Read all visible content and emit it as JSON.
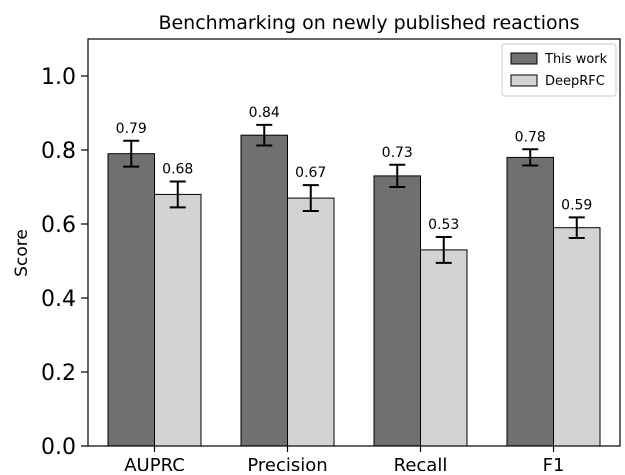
{
  "chart_data": {
    "type": "bar",
    "title": "Benchmarking on newly published reactions",
    "xlabel": "",
    "ylabel": "Score",
    "ylim": [
      0.0,
      1.1
    ],
    "yticks": [
      "0.0",
      "0.2",
      "0.4",
      "0.6",
      "0.8",
      "1.0"
    ],
    "grid": false,
    "legend_position": "top-right",
    "categories": [
      "AUPRC",
      "Precision",
      "Recall",
      "F1"
    ],
    "series": [
      {
        "name": "This work",
        "color": "#707070",
        "values": [
          0.79,
          0.84,
          0.73,
          0.78
        ],
        "errors": [
          0.035,
          0.028,
          0.03,
          0.022
        ],
        "labels": [
          "0.79",
          "0.84",
          "0.73",
          "0.78"
        ]
      },
      {
        "name": "DeepRFC",
        "color": "#d3d3d3",
        "values": [
          0.68,
          0.67,
          0.53,
          0.59
        ],
        "errors": [
          0.035,
          0.035,
          0.035,
          0.028
        ],
        "labels": [
          "0.68",
          "0.67",
          "0.53",
          "0.59"
        ]
      }
    ]
  }
}
